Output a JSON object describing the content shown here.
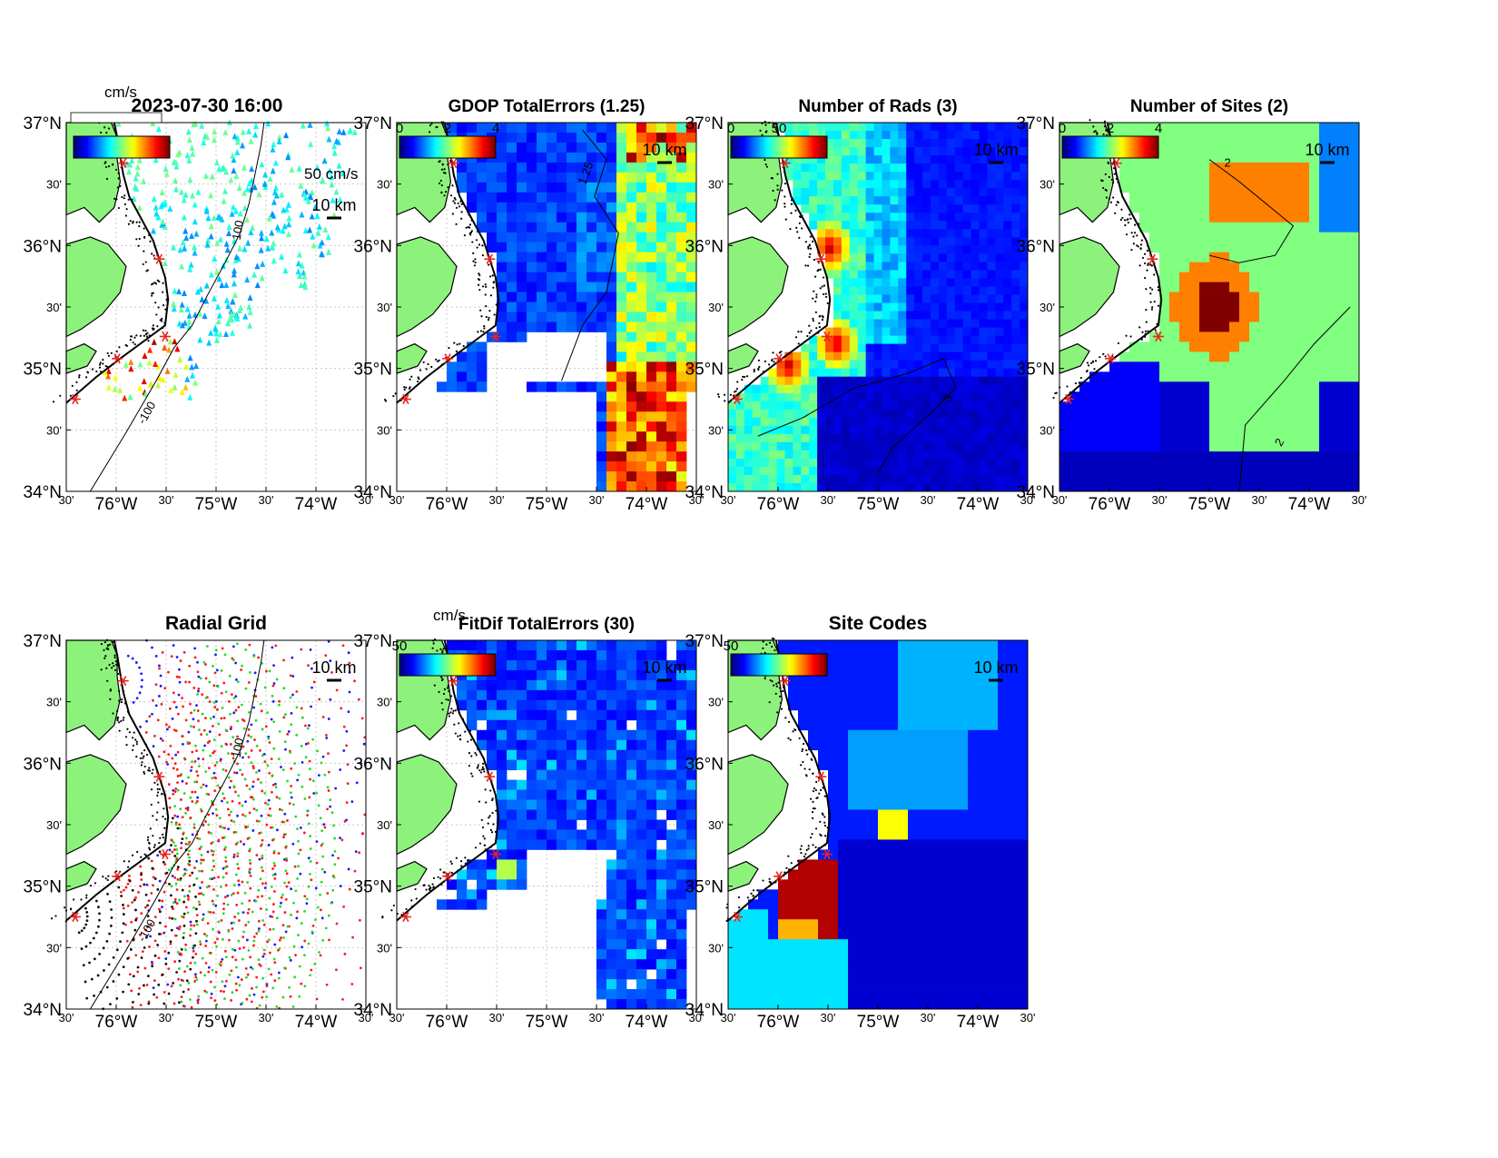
{
  "timestamp": "2023-07-30 16:00",
  "lat_labels": [
    "37°N",
    "30'",
    "36°N",
    "30'",
    "35°N",
    "30'",
    "34°N"
  ],
  "lon_labels": [
    "30'",
    "76°W",
    "30'",
    "75°W",
    "30'",
    "74°W",
    "30'"
  ],
  "scale_bar": "10 km",
  "colors": {
    "land": "#8df27c",
    "site_marker": "#e8241b",
    "background": "#ffffff"
  },
  "panels": [
    {
      "id": "currents",
      "title": "2023-07-30 16:00",
      "colorbar_unit": "cm/s",
      "vector_scale": "50 cm/s",
      "contour_labels": [
        "-100",
        "100"
      ]
    },
    {
      "id": "gdop",
      "title": "GDOP TotalErrors (1.25)",
      "colorbar_ticks": [
        "0",
        "2",
        "4"
      ],
      "contour_labels": [
        "1.25"
      ]
    },
    {
      "id": "rads",
      "title": "Number of Rads (3)",
      "colorbar_ticks": [
        "0",
        "50"
      ],
      "contour_labels": [
        "3"
      ]
    },
    {
      "id": "sites",
      "title": "Number of Sites (2)",
      "colorbar_ticks": [
        "0",
        "2",
        "4"
      ],
      "contour_labels": [
        "2"
      ]
    },
    {
      "id": "radialgrid",
      "title": "Radial Grid",
      "contour_labels": [
        "-100",
        "100"
      ],
      "site_colors": [
        "#1a1aff",
        "#ff1a1a",
        "#22dd22",
        "#ff1a1a",
        "#111111"
      ]
    },
    {
      "id": "fitdif",
      "title": "FitDif TotalErrors (30)",
      "colorbar_unit": "cm/s",
      "colorbar_ticks": [
        "50"
      ]
    },
    {
      "id": "sitecodes",
      "title": "Site Codes",
      "colorbar_ticks": [
        "50"
      ]
    }
  ]
}
